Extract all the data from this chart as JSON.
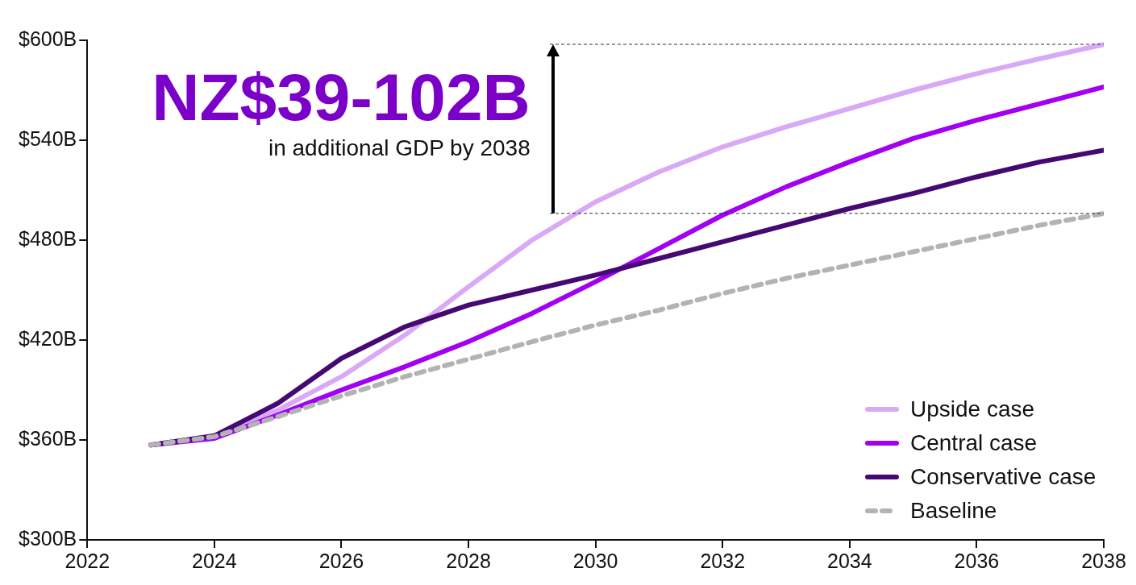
{
  "chart_data": {
    "type": "line",
    "x": [
      2023,
      2024,
      2025,
      2026,
      2027,
      2028,
      2029,
      2030,
      2031,
      2032,
      2033,
      2034,
      2035,
      2036,
      2037,
      2038
    ],
    "series": [
      {
        "name": "Upside case",
        "color": "#d9a9f7",
        "values": [
          357,
          362.5,
          378,
          398,
          423,
          452,
          480,
          503,
          521,
          536,
          548,
          559,
          570,
          580,
          589,
          597.5
        ]
      },
      {
        "name": "Central case",
        "color": "#a100f2",
        "values": [
          357,
          361,
          375,
          390,
          404,
          419,
          436,
          455,
          475,
          495,
          512,
          527,
          541,
          552,
          562,
          572
        ]
      },
      {
        "name": "Conservative case",
        "color": "#460873",
        "values": [
          357,
          362.5,
          382,
          409,
          428,
          441,
          450,
          459,
          469,
          479,
          489,
          499,
          508,
          518,
          527,
          534
        ]
      },
      {
        "name": "Baseline",
        "color": "#b3b3b3",
        "line_style": "dashed",
        "values": [
          357,
          362,
          374,
          386.5,
          398,
          408.5,
          419,
          429,
          438,
          448,
          457,
          465,
          473,
          481,
          489,
          496
        ]
      }
    ],
    "xlim": [
      2022,
      2038
    ],
    "xticks": [
      2022,
      2024,
      2026,
      2028,
      2030,
      2032,
      2034,
      2036,
      2038
    ],
    "ylim": [
      300,
      600
    ],
    "yticks": [
      {
        "value": 300,
        "label": "$300B"
      },
      {
        "value": 360,
        "label": "$360B"
      },
      {
        "value": 420,
        "label": "$420B"
      },
      {
        "value": 480,
        "label": "$480B"
      },
      {
        "value": 540,
        "label": "$540B"
      },
      {
        "value": 600,
        "label": "$600B"
      }
    ],
    "annotations": [
      "NZ$39-102B",
      "in additional GDP by 2038"
    ],
    "legend": "bottom right",
    "grid": false,
    "marker": "none",
    "line_style": "solid"
  }
}
